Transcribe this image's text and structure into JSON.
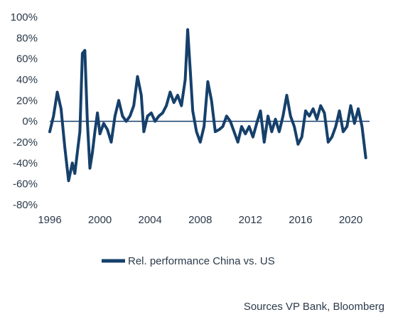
{
  "chart_data": {
    "type": "line",
    "ylim": [
      -0.8,
      1.0
    ],
    "xlim": [
      1996.0,
      2021.5
    ],
    "y_ticks": [
      {
        "value": 1.0,
        "label": "100%"
      },
      {
        "value": 0.8,
        "label": "80%"
      },
      {
        "value": 0.6,
        "label": "60%"
      },
      {
        "value": 0.4,
        "label": "40%"
      },
      {
        "value": 0.2,
        "label": "20%"
      },
      {
        "value": 0.0,
        "label": "0%"
      },
      {
        "value": -0.2,
        "label": "-20%"
      },
      {
        "value": -0.4,
        "label": "-40%"
      },
      {
        "value": -0.6,
        "label": "-60%"
      },
      {
        "value": -0.8,
        "label": "-80%"
      }
    ],
    "x_ticks": [
      {
        "value": 1996,
        "label": "1996"
      },
      {
        "value": 2000,
        "label": "2000"
      },
      {
        "value": 2004,
        "label": "2004"
      },
      {
        "value": 2008,
        "label": "2008"
      },
      {
        "value": 2012,
        "label": "2012"
      },
      {
        "value": 2016,
        "label": "2016"
      },
      {
        "value": 2020,
        "label": "2020"
      }
    ],
    "grid": false,
    "zero_line": true,
    "line_color": "#16406b",
    "series": [
      {
        "name": "Rel. performance China vs. US",
        "x": [
          1996.0,
          1996.3,
          1996.6,
          1996.9,
          1997.2,
          1997.5,
          1997.8,
          1998.0,
          1998.2,
          1998.4,
          1998.6,
          1998.8,
          1999.0,
          1999.2,
          1999.4,
          1999.6,
          1999.8,
          2000.0,
          2000.3,
          2000.6,
          2000.9,
          2001.2,
          2001.5,
          2001.8,
          2002.1,
          2002.4,
          2002.7,
          2003.0,
          2003.3,
          2003.5,
          2003.8,
          2004.1,
          2004.4,
          2004.7,
          2005.0,
          2005.3,
          2005.6,
          2005.9,
          2006.2,
          2006.5,
          2006.8,
          2007.0,
          2007.2,
          2007.4,
          2007.7,
          2008.0,
          2008.3,
          2008.6,
          2008.9,
          2009.2,
          2009.5,
          2009.8,
          2010.1,
          2010.4,
          2010.7,
          2011.0,
          2011.3,
          2011.6,
          2011.9,
          2012.2,
          2012.5,
          2012.8,
          2013.1,
          2013.4,
          2013.7,
          2014.0,
          2014.3,
          2014.6,
          2014.9,
          2015.2,
          2015.5,
          2015.8,
          2016.1,
          2016.4,
          2016.7,
          2017.0,
          2017.3,
          2017.6,
          2017.9,
          2018.2,
          2018.5,
          2018.8,
          2019.1,
          2019.4,
          2019.7,
          2020.0,
          2020.3,
          2020.6,
          2020.9,
          2021.2
        ],
        "y": [
          -0.1,
          0.05,
          0.28,
          0.12,
          -0.25,
          -0.57,
          -0.4,
          -0.5,
          -0.3,
          -0.1,
          0.65,
          0.68,
          0.0,
          -0.45,
          -0.3,
          -0.1,
          0.08,
          -0.12,
          -0.02,
          -0.08,
          -0.2,
          0.05,
          0.2,
          0.05,
          0.0,
          0.05,
          0.15,
          0.43,
          0.25,
          -0.1,
          0.05,
          0.08,
          0.0,
          0.05,
          0.08,
          0.15,
          0.28,
          0.18,
          0.25,
          0.15,
          0.4,
          0.88,
          0.5,
          0.1,
          -0.1,
          -0.2,
          -0.05,
          0.38,
          0.2,
          -0.1,
          -0.08,
          -0.05,
          0.05,
          0.0,
          -0.1,
          -0.2,
          -0.05,
          -0.12,
          -0.05,
          -0.15,
          -0.02,
          0.1,
          -0.2,
          0.05,
          -0.1,
          0.02,
          -0.1,
          0.05,
          0.25,
          0.05,
          -0.05,
          -0.22,
          -0.15,
          0.1,
          0.05,
          0.12,
          0.02,
          0.15,
          0.08,
          -0.2,
          -0.15,
          -0.05,
          0.1,
          -0.1,
          -0.05,
          0.15,
          -0.02,
          0.12,
          -0.05,
          -0.35
        ]
      }
    ],
    "legend_position": "bottom-center"
  },
  "legend": {
    "label": "Rel. performance China vs. US"
  },
  "footer": {
    "source": "Sources VP Bank, Bloomberg"
  }
}
